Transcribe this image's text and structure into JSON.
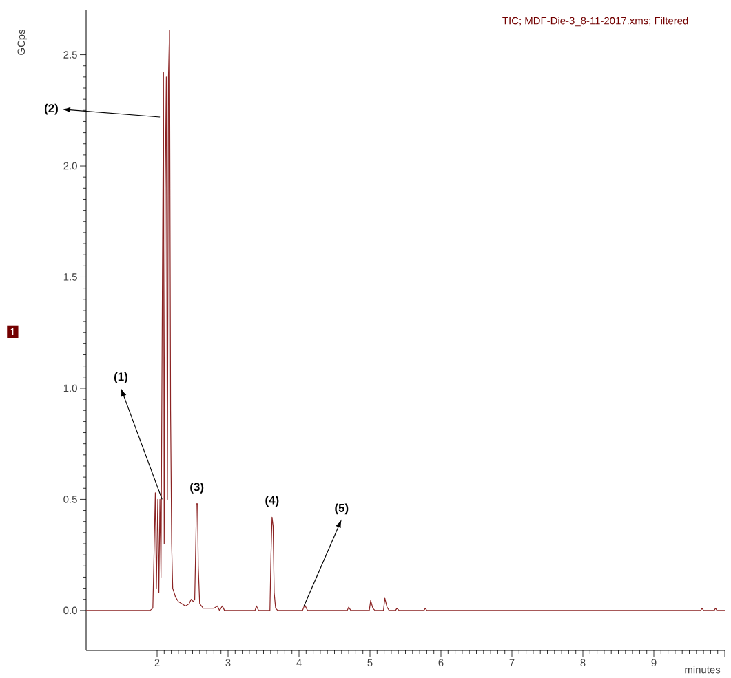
{
  "chart_data": {
    "type": "line",
    "title": "TIC;  MDF-Die-3_8-11-2017.xms;  Filtered",
    "xlabel": "minutes",
    "ylabel": "GCps",
    "xlim": [
      1,
      10
    ],
    "ylim": [
      -0.18,
      2.7
    ],
    "xticks": [
      2,
      3,
      4,
      5,
      6,
      7,
      8,
      9,
      {
        "value": 10,
        "label": null
      }
    ],
    "yticks": [
      {
        "value": 0,
        "label": "0.0"
      },
      {
        "value": 0.5,
        "label": "0.5"
      },
      {
        "value": 1,
        "label": "1.0"
      },
      {
        "value": 1.5,
        "label": "1.5"
      },
      {
        "value": 2,
        "label": "2.0"
      },
      {
        "value": 2.5,
        "label": "2.5"
      }
    ],
    "grid": false,
    "legend": false,
    "marker": "none",
    "line_style": "solid",
    "annotations": [
      {
        "text": "(1)",
        "x": 2.07,
        "y": 0.5
      },
      {
        "text": "(2)",
        "x": 2.04,
        "y": 2.22
      },
      {
        "text": "(3)",
        "x": 2.56,
        "y": 0.48
      },
      {
        "text": "(4)",
        "x": 3.62,
        "y": 0.42
      },
      {
        "text": "(5)",
        "x": 4.07,
        "y": 0.02
      },
      "1"
    ],
    "series": [
      {
        "color": "#8b2323",
        "x": [
          1.0,
          1.5,
          1.9,
          1.94,
          1.96,
          1.975,
          1.99,
          2.01,
          2.025,
          2.04,
          2.055,
          2.075,
          2.09,
          2.1,
          2.115,
          2.13,
          2.145,
          2.16,
          2.175,
          2.19,
          2.205,
          2.22,
          2.26,
          2.3,
          2.35,
          2.4,
          2.45,
          2.48,
          2.51,
          2.53,
          2.545,
          2.555,
          2.57,
          2.58,
          2.6,
          2.65,
          2.8,
          2.85,
          2.88,
          2.92,
          2.95,
          3.38,
          3.4,
          3.43,
          3.59,
          3.605,
          3.62,
          3.635,
          3.65,
          3.67,
          3.7,
          4.05,
          4.08,
          4.12,
          4.68,
          4.7,
          4.73,
          4.99,
          5.01,
          5.04,
          5.07,
          5.19,
          5.21,
          5.24,
          5.27,
          5.36,
          5.38,
          5.41,
          5.76,
          5.78,
          5.8,
          9.66,
          9.68,
          9.7,
          9.85,
          9.87,
          9.89,
          10.0
        ],
        "values": [
          0.0,
          0.0,
          0.0,
          0.01,
          0.3,
          0.53,
          0.1,
          0.5,
          0.08,
          0.5,
          0.15,
          1.5,
          2.42,
          0.3,
          1.9,
          2.4,
          0.5,
          2.4,
          2.61,
          0.9,
          0.3,
          0.1,
          0.06,
          0.04,
          0.03,
          0.02,
          0.03,
          0.05,
          0.04,
          0.05,
          0.3,
          0.48,
          0.48,
          0.2,
          0.03,
          0.01,
          0.01,
          0.02,
          0.0,
          0.02,
          0.0,
          0.0,
          0.02,
          0.0,
          0.0,
          0.25,
          0.42,
          0.38,
          0.08,
          0.01,
          0.0,
          0.0,
          0.025,
          0.0,
          0.0,
          0.015,
          0.0,
          0.0,
          0.045,
          0.01,
          0.0,
          0.0,
          0.055,
          0.015,
          0.0,
          0.0,
          0.01,
          0.0,
          0.0,
          0.01,
          0.0,
          0.0,
          0.01,
          0.0,
          0.0,
          0.01,
          0.0,
          0.0
        ]
      }
    ]
  }
}
